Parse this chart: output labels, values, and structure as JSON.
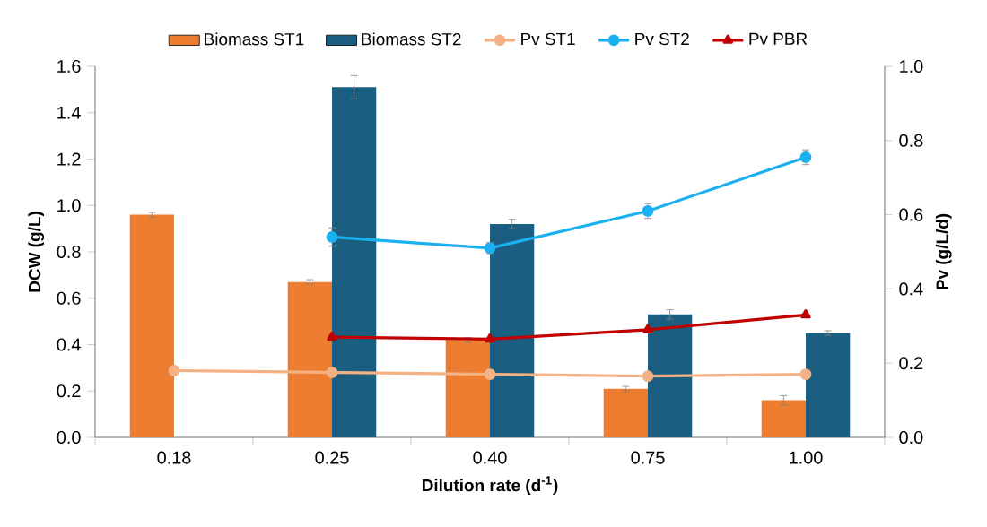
{
  "chart_data": {
    "type": "bar",
    "categories": [
      "0.18",
      "0.25",
      "0.40",
      "0.75",
      "1.00"
    ],
    "xlabel": "Dilution rate (d$^{-1}$)",
    "ylabel": "DCW (g/L)",
    "y2label": "Pv (g/L/d)",
    "ylim": [
      0,
      1.6
    ],
    "yticks": [
      {
        "value": 0,
        "label": "0.0"
      },
      {
        "value": 0.2,
        "label": "0.2"
      },
      {
        "value": 0.4,
        "label": "0.4"
      },
      {
        "value": 0.6,
        "label": "0.6"
      },
      {
        "value": 0.8,
        "label": "0.8"
      },
      {
        "value": 1.0,
        "label": "1.0"
      },
      {
        "value": 1.2,
        "label": "1.2"
      },
      {
        "value": 1.4,
        "label": "1.4"
      },
      {
        "value": 1.6,
        "label": "1.6"
      }
    ],
    "y2lim": [
      0,
      1.0
    ],
    "y2ticks": [
      {
        "value": 0,
        "label": "0.0"
      },
      {
        "value": 0.2,
        "label": "0.2"
      },
      {
        "value": 0.4,
        "label": "0.4"
      },
      {
        "value": 0.6,
        "label": "0.6"
      },
      {
        "value": 0.8,
        "label": "0.8"
      },
      {
        "value": 1.0,
        "label": "1.0"
      }
    ],
    "legend": "top",
    "series": [
      {
        "name": "Biomass ST1",
        "axis": "y",
        "color": "#ed7d31",
        "values": [
          0.96,
          0.67,
          0.42,
          0.21,
          0.16
        ],
        "errors": [
          0.01,
          0.01,
          0.01,
          0.01,
          0.02
        ]
      },
      {
        "name": "Biomass ST2",
        "axis": "y",
        "color": "#1a5f82",
        "values": [
          null,
          1.51,
          0.92,
          0.53,
          0.45
        ],
        "errors": [
          null,
          0.05,
          0.02,
          0.02,
          0.01
        ]
      },
      {
        "name": "Pv ST1",
        "type": "line",
        "axis": "y2",
        "color": "#f4b183",
        "marker": "circle",
        "values": [
          0.18,
          0.175,
          0.17,
          0.165,
          0.17
        ]
      },
      {
        "name": "Pv ST2",
        "type": "line",
        "axis": "y2",
        "color": "#1bb0f0",
        "marker": "circle",
        "values": [
          null,
          0.54,
          0.51,
          0.61,
          0.755
        ],
        "errors": [
          null,
          0.025,
          0.015,
          0.02,
          0.02
        ]
      },
      {
        "name": "Pv PBR",
        "type": "line",
        "axis": "y2",
        "color": "#c00000",
        "marker": "triangle",
        "values": [
          null,
          0.27,
          0.265,
          0.29,
          0.33
        ]
      }
    ]
  }
}
